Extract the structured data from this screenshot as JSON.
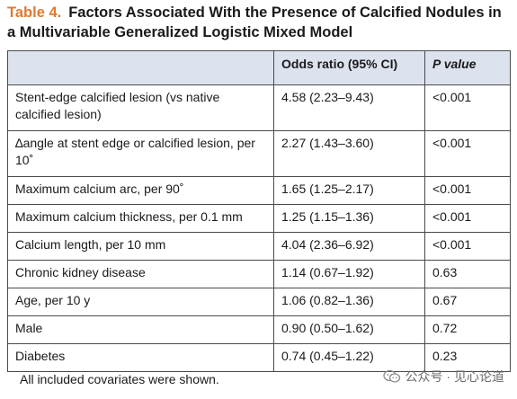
{
  "title": {
    "label": "Table 4.",
    "text": "Factors Associated With the Presence of Calcified Nodules in a Multivariable Generalized Logistic Mixed Model"
  },
  "table": {
    "headers": [
      "",
      "Odds ratio (95% CI)",
      "P value"
    ],
    "rows": [
      {
        "factor": "Stent-edge calcified lesion (vs native calcified lesion)",
        "or": "4.58 (2.23–9.43)",
        "p": "<0.001"
      },
      {
        "factor": "∆angle at stent edge or calcified lesion, per 10˚",
        "or": "2.27 (1.43–3.60)",
        "p": "<0.001"
      },
      {
        "factor": "Maximum calcium arc, per 90˚",
        "or": "1.65 (1.25–2.17)",
        "p": "<0.001"
      },
      {
        "factor": "Maximum calcium thickness, per 0.1 mm",
        "or": "1.25 (1.15–1.36)",
        "p": "<0.001"
      },
      {
        "factor": "Calcium length, per 10 mm",
        "or": "4.04 (2.36–6.92)",
        "p": "<0.001"
      },
      {
        "factor": "Chronic kidney disease",
        "or": "1.14 (0.67–1.92)",
        "p": "0.63"
      },
      {
        "factor": "Age, per 10 y",
        "or": "1.06 (0.82–1.36)",
        "p": "0.67"
      },
      {
        "factor": "Male",
        "or": "0.90 (0.50–1.62)",
        "p": "0.72"
      },
      {
        "factor": "Diabetes",
        "or": "0.74 (0.45–1.22)",
        "p": "0.23"
      }
    ]
  },
  "footer": "All included covariates were shown.",
  "watermark": "公众号 · 见心论道"
}
